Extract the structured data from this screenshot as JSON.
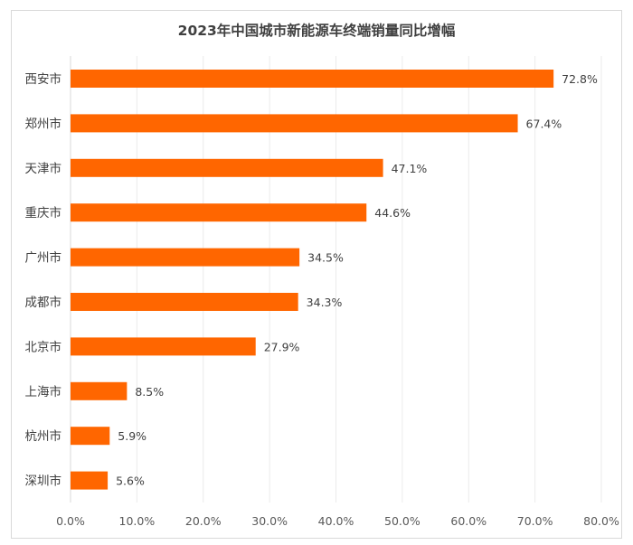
{
  "chart_data": {
    "type": "bar",
    "orientation": "horizontal",
    "title": "2023年中国城市新能源车终端销量同比增幅",
    "categories": [
      "西安市",
      "郑州市",
      "天津市",
      "重庆市",
      "广州市",
      "成都市",
      "北京市",
      "上海市",
      "杭州市",
      "深圳市"
    ],
    "values": [
      72.8,
      67.4,
      47.1,
      44.6,
      34.5,
      34.3,
      27.9,
      8.5,
      5.9,
      5.6
    ],
    "data_labels": [
      "72.8%",
      "67.4%",
      "47.1%",
      "44.6%",
      "34.5%",
      "34.3%",
      "27.9%",
      "8.5%",
      "5.9%",
      "5.6%"
    ],
    "xlim": [
      0,
      80
    ],
    "x_ticks": [
      0,
      10,
      20,
      30,
      40,
      50,
      60,
      70,
      80
    ],
    "x_tick_labels": [
      "0.0%",
      "10.0%",
      "20.0%",
      "30.0%",
      "40.0%",
      "50.0%",
      "60.0%",
      "70.0%",
      "80.0%"
    ],
    "xlabel": "",
    "ylabel": "",
    "grid": "vertical",
    "legend": "none",
    "bar_color": "#FF6600",
    "grid_color": "#EBEBEB"
  }
}
